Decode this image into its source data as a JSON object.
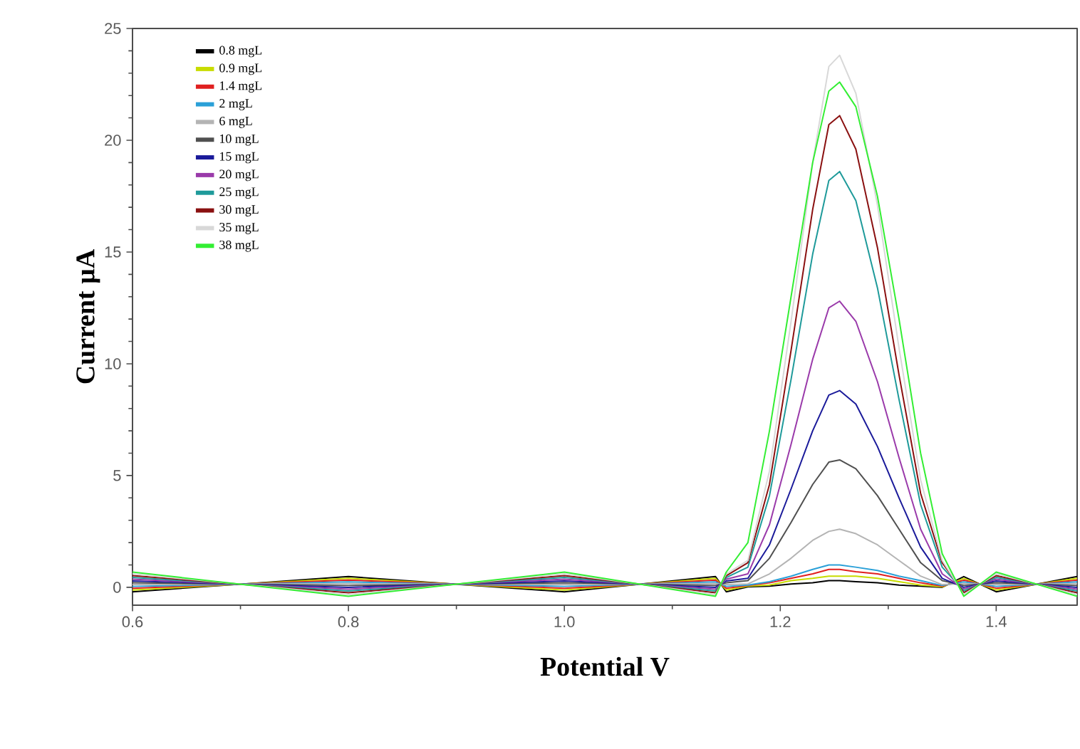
{
  "chart_data": {
    "type": "line",
    "xlabel": "Potential V",
    "ylabel": "Current µA",
    "x": [
      0.6,
      0.8,
      1.0,
      1.14,
      1.15,
      1.17,
      1.19,
      1.21,
      1.23,
      1.245,
      1.255,
      1.27,
      1.29,
      1.31,
      1.33,
      1.35,
      1.37,
      1.4,
      1.475
    ],
    "series": [
      {
        "name": "0.8 mgL",
        "color": "#000000",
        "values": [
          -0.2,
          0.48,
          -0.2,
          0.48,
          -0.2,
          0.02,
          0.05,
          0.15,
          0.2,
          0.3,
          0.3,
          0.25,
          0.2,
          0.1,
          0.05,
          0.0,
          0.48,
          -0.2,
          0.48
        ]
      },
      {
        "name": "0.9 mgL",
        "color": "#c8dc00",
        "values": [
          -0.12,
          0.4,
          -0.12,
          0.4,
          -0.12,
          0.05,
          0.1,
          0.3,
          0.4,
          0.5,
          0.5,
          0.5,
          0.4,
          0.25,
          0.1,
          0.02,
          0.4,
          -0.12,
          0.4
        ]
      },
      {
        "name": "1.4 mgL",
        "color": "#e02020",
        "values": [
          -0.04,
          0.32,
          -0.04,
          0.32,
          -0.04,
          0.08,
          0.2,
          0.4,
          0.6,
          0.8,
          0.8,
          0.7,
          0.6,
          0.4,
          0.2,
          0.05,
          0.32,
          -0.04,
          0.32
        ]
      },
      {
        "name": "2 mgL",
        "color": "#2aa0d8",
        "values": [
          0.04,
          0.24,
          0.04,
          0.24,
          0.04,
          0.1,
          0.25,
          0.5,
          0.8,
          1.0,
          1.0,
          0.9,
          0.75,
          0.5,
          0.3,
          0.08,
          0.24,
          0.04,
          0.24
        ]
      },
      {
        "name": "6 mgL",
        "color": "#b4b4b4",
        "values": [
          0.12,
          0.16,
          0.12,
          0.16,
          0.12,
          0.15,
          0.6,
          1.3,
          2.1,
          2.5,
          2.6,
          2.4,
          1.9,
          1.2,
          0.5,
          0.12,
          0.16,
          0.12,
          0.16
        ]
      },
      {
        "name": "10 mgL",
        "color": "#505050",
        "values": [
          0.2,
          0.08,
          0.2,
          0.08,
          0.2,
          0.3,
          1.3,
          2.9,
          4.6,
          5.6,
          5.7,
          5.3,
          4.1,
          2.6,
          1.1,
          0.3,
          0.08,
          0.2,
          0.08
        ]
      },
      {
        "name": "15 mgL",
        "color": "#1a1a9a",
        "values": [
          0.28,
          0,
          0.28,
          0,
          0.28,
          0.4,
          1.9,
          4.4,
          7.0,
          8.6,
          8.8,
          8.2,
          6.3,
          4.0,
          1.8,
          0.4,
          0,
          0.28,
          0
        ]
      },
      {
        "name": "20 mgL",
        "color": "#9a3aaa",
        "values": [
          0.36,
          -0.08,
          0.36,
          -0.08,
          0.36,
          0.6,
          2.8,
          6.4,
          10.2,
          12.5,
          12.8,
          11.9,
          9.2,
          5.8,
          2.6,
          0.6,
          -0.08,
          0.36,
          -0.08
        ]
      },
      {
        "name": "25 mgL",
        "color": "#1e9a9a",
        "values": [
          0.44,
          -0.16,
          0.44,
          -0.16,
          0.44,
          0.9,
          4.1,
          9.3,
          14.9,
          18.2,
          18.6,
          17.3,
          13.4,
          8.4,
          3.7,
          0.9,
          -0.16,
          0.44,
          -0.16
        ]
      },
      {
        "name": "30 mgL",
        "color": "#8a1010",
        "values": [
          0.52,
          -0.24,
          0.52,
          -0.24,
          0.52,
          1.1,
          4.6,
          10.6,
          16.9,
          20.7,
          21.1,
          19.6,
          15.2,
          9.5,
          4.2,
          1.1,
          -0.24,
          0.52,
          -0.24
        ]
      },
      {
        "name": "35 mgL",
        "color": "#d8d8d8",
        "values": [
          0.6,
          -0.32,
          0.6,
          -0.32,
          0.6,
          1.2,
          5.2,
          11.9,
          19.0,
          23.3,
          23.8,
          22.1,
          17.1,
          10.7,
          4.8,
          1.2,
          -0.32,
          0.6,
          -0.32
        ]
      },
      {
        "name": "38 mgL",
        "color": "#33ee33",
        "values": [
          0.68,
          -0.4,
          0.68,
          -0.4,
          0.68,
          2.0,
          7.0,
          13.0,
          19.0,
          22.2,
          22.6,
          21.5,
          17.5,
          12.0,
          6.0,
          1.5,
          -0.4,
          0.68,
          -0.4
        ]
      }
    ],
    "xlim": [
      0.6,
      1.475
    ],
    "ylim": [
      -0.8,
      25
    ],
    "xticks": [
      0.6,
      0.8,
      {
        "value": 1.0,
        "label": "1.0"
      },
      1.2,
      1.4
    ],
    "yticks": [
      0,
      5,
      10,
      15,
      20,
      25
    ],
    "legend": "top left"
  }
}
